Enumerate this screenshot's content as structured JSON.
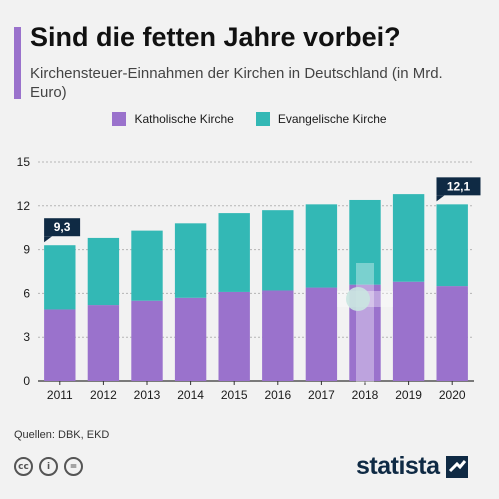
{
  "header": {
    "title": "Sind die fetten Jahre vorbei?",
    "subtitle": "Kirchensteuer-Einnahmen der Kirchen in Deutschland (in Mrd. Euro)"
  },
  "legend": {
    "items": [
      {
        "label": "Katholische Kirche",
        "color": "#9a72cc"
      },
      {
        "label": "Evangelische Kirche",
        "color": "#33b8b5"
      }
    ]
  },
  "chart_data": {
    "type": "bar",
    "stacked": true,
    "categories": [
      "2011",
      "2012",
      "2013",
      "2014",
      "2015",
      "2016",
      "2017",
      "2018",
      "2019",
      "2020"
    ],
    "series": [
      {
        "name": "Katholische Kirche",
        "color": "#9a72cc",
        "values": [
          4.9,
          5.2,
          5.5,
          5.7,
          6.1,
          6.2,
          6.4,
          6.6,
          6.8,
          6.5
        ]
      },
      {
        "name": "Evangelische Kirche",
        "color": "#33b8b5",
        "values": [
          4.4,
          4.6,
          4.8,
          5.1,
          5.4,
          5.5,
          5.7,
          5.8,
          6.0,
          5.6
        ]
      }
    ],
    "totals": [
      9.3,
      9.8,
      10.3,
      10.8,
      11.5,
      11.7,
      12.1,
      12.4,
      12.8,
      12.1
    ],
    "annotations": [
      {
        "category": "2011",
        "label": "9,3"
      },
      {
        "category": "2020",
        "label": "12,1"
      }
    ],
    "yticks": [
      0,
      3,
      6,
      9,
      12,
      15
    ],
    "ylim": [
      0,
      15
    ],
    "grid": true,
    "legend_position": "top"
  },
  "footer": {
    "source": "Quellen: DBK, EKD",
    "brand": "statista",
    "cc_icons": [
      "cc-icon",
      "by-icon",
      "nd-icon"
    ],
    "cc_glyphs": [
      "cc",
      "i",
      "="
    ]
  }
}
